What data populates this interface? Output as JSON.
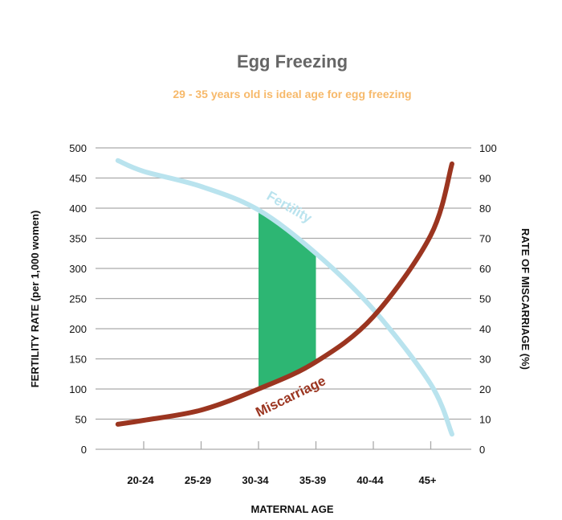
{
  "chart_data": {
    "type": "line",
    "title": "Egg Freezing",
    "subtitle": "29 - 35 years old is ideal age for egg freezing",
    "xlabel": "MATERNAL AGE",
    "ylabel": "FERTILITY RATE (per 1,000 women)",
    "y2label": "RATE OF MISCARRIAGE (%)",
    "categories": [
      "20-24",
      "25-29",
      "30-34",
      "35-39",
      "40-44",
      "45+"
    ],
    "ylim": [
      0,
      500
    ],
    "yticks": [
      "0",
      "50",
      "100",
      "150",
      "200",
      "250",
      "300",
      "350",
      "400",
      "450",
      "500"
    ],
    "y2lim": [
      0,
      100
    ],
    "y2ticks": [
      "0",
      "10",
      "20",
      "30",
      "40",
      "50",
      "60",
      "70",
      "80",
      "90",
      "100"
    ],
    "grid": true,
    "series": [
      {
        "name": "Fertility",
        "axis": "left",
        "color": "#b9e3ee",
        "points": [
          [
            -0.45,
            479
          ],
          [
            0,
            461
          ],
          [
            1,
            436
          ],
          [
            2,
            397
          ],
          [
            3,
            325
          ],
          [
            4,
            232
          ],
          [
            5,
            108
          ],
          [
            5.37,
            25
          ]
        ]
      },
      {
        "name": "Miscarriage",
        "axis": "right",
        "color": "#9b3520",
        "points": [
          [
            -0.45,
            8.3
          ],
          [
            0,
            9.6
          ],
          [
            1,
            13
          ],
          [
            2,
            20
          ],
          [
            3,
            29
          ],
          [
            4,
            44
          ],
          [
            5,
            71
          ],
          [
            5.37,
            94.7
          ]
        ]
      }
    ],
    "highlight": {
      "from": "30-34",
      "to": "35-39",
      "color": "#2db673"
    }
  }
}
